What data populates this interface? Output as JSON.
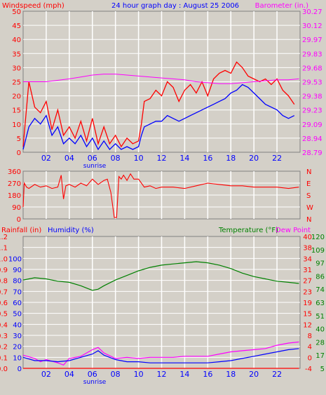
{
  "header": {
    "title": "24 hour graph day : August 25 2006",
    "left_label": "Windspeed (mph)",
    "right_label": "Barometer (in.)"
  },
  "colors": {
    "windspeed": "#ff0000",
    "gust": "#ff0000",
    "windavg": "#0000ff",
    "barometer": "#ff00ff",
    "direction": "#ff0000",
    "temperature": "#008000",
    "dewpoint": "#ff00ff",
    "humidity": "#0000ff",
    "rainfall": "#ff0000",
    "title": "#0000ff",
    "plot_bg": "#d4d0c8",
    "grid": "#ffffff"
  },
  "chart_data": [
    {
      "id": "wind-barometer",
      "type": "line",
      "x_ticks": [
        "02",
        "04",
        "06",
        "08",
        "10",
        "12",
        "14",
        "16",
        "18",
        "20",
        "22"
      ],
      "x_tick_hours": [
        2,
        4,
        6,
        8,
        10,
        12,
        14,
        16,
        18,
        20,
        22
      ],
      "sunrise_label": "sunrise",
      "sunrise_hour": 6.2,
      "xlim": [
        0,
        24
      ],
      "left_axis": {
        "ticks": [
          "0",
          "5",
          "10",
          "15",
          "20",
          "25",
          "30",
          "35",
          "40",
          "45",
          "50"
        ],
        "ylim": [
          0,
          50
        ]
      },
      "right_axis": {
        "ticks": [
          "28.79",
          "28.94",
          "29.09",
          "29.23",
          "29.38",
          "29.53",
          "29.68",
          "29.83",
          "29.97",
          "30.12",
          "30.27"
        ],
        "ylim": [
          28.79,
          30.27
        ]
      },
      "series": [
        {
          "key": "gust",
          "axis": "left",
          "x": [
            0,
            0.5,
            1,
            1.5,
            2,
            2.5,
            3,
            3.5,
            4,
            4.5,
            5,
            5.5,
            6,
            6.5,
            7,
            7.5,
            8,
            8.5,
            9,
            9.5,
            10,
            10.25,
            10.5,
            11,
            11.5,
            12,
            12.5,
            13,
            13.5,
            14,
            14.5,
            15,
            15.5,
            16,
            16.5,
            17,
            17.5,
            18,
            18.5,
            19,
            19.5,
            20,
            20.5,
            21,
            21.5,
            22,
            22.5,
            23,
            23.5
          ],
          "y": [
            2,
            25,
            16,
            14,
            18,
            8,
            15,
            6,
            9,
            5,
            11,
            4,
            12,
            3,
            9,
            3,
            6,
            2,
            5,
            3,
            4,
            10,
            18,
            19,
            22,
            20,
            25,
            23,
            18,
            22,
            24,
            21,
            25,
            20,
            26,
            28,
            29,
            28,
            32,
            30,
            27,
            26,
            25,
            26,
            24,
            26,
            22,
            20,
            17
          ]
        },
        {
          "key": "windavg",
          "axis": "left",
          "x": [
            0,
            0.5,
            1,
            1.5,
            2,
            2.5,
            3,
            3.5,
            4,
            4.5,
            5,
            5.5,
            6,
            6.5,
            7,
            7.5,
            8,
            8.5,
            9,
            9.5,
            10,
            10.25,
            10.5,
            11,
            11.5,
            12,
            12.5,
            13,
            13.5,
            14,
            14.5,
            15,
            15.5,
            16,
            16.5,
            17,
            17.5,
            18,
            18.5,
            19,
            19.5,
            20,
            20.5,
            21,
            21.5,
            22,
            22.5,
            23,
            23.5
          ],
          "y": [
            1,
            9,
            12,
            10,
            13,
            6,
            9,
            3,
            5,
            3,
            6,
            2,
            5,
            1,
            4,
            1,
            3,
            1,
            2,
            1,
            2,
            6,
            9,
            10,
            11,
            11,
            13,
            12,
            11,
            12,
            13,
            14,
            15,
            16,
            17,
            18,
            19,
            21,
            22,
            24,
            23,
            21,
            19,
            17,
            16,
            15,
            13,
            12,
            13
          ]
        },
        {
          "key": "barometer",
          "axis": "right",
          "x": [
            0,
            2,
            4,
            5,
            6,
            7,
            8,
            9,
            10,
            11,
            12,
            13,
            14,
            15,
            16,
            17,
            18,
            19,
            20,
            21,
            22,
            23,
            23.9
          ],
          "y": [
            29.53,
            29.53,
            29.56,
            29.58,
            29.6,
            29.61,
            29.61,
            29.6,
            29.59,
            29.58,
            29.57,
            29.56,
            29.55,
            29.53,
            29.52,
            29.51,
            29.51,
            29.52,
            29.53,
            29.54,
            29.55,
            29.55,
            29.56
          ]
        }
      ]
    },
    {
      "id": "wind-direction",
      "type": "line",
      "xlim": [
        0,
        24
      ],
      "left_axis": {
        "ticks": [
          "0",
          "90",
          "180",
          "270",
          "360"
        ],
        "ylim": [
          0,
          360
        ]
      },
      "right_axis": {
        "ticks": [
          "N",
          "W",
          "S",
          "E",
          "N"
        ]
      },
      "series": [
        {
          "key": "direction",
          "axis": "left",
          "x": [
            0,
            0.1,
            0.3,
            0.5,
            1,
            1.5,
            2,
            2.5,
            3,
            3.3,
            3.5,
            3.7,
            4,
            4.5,
            5,
            5.5,
            6,
            6.5,
            7,
            7.3,
            7.6,
            7.9,
            8.1,
            8.3,
            8.5,
            8.7,
            9,
            9.3,
            9.6,
            10,
            10.5,
            11,
            11.5,
            12,
            13,
            14,
            15,
            16,
            17,
            18,
            19,
            20,
            21,
            22,
            23,
            23.9
          ],
          "y": [
            90,
            270,
            240,
            230,
            260,
            240,
            250,
            230,
            240,
            330,
            150,
            250,
            260,
            240,
            270,
            250,
            300,
            260,
            290,
            300,
            200,
            10,
            10,
            320,
            300,
            330,
            290,
            340,
            300,
            300,
            240,
            250,
            230,
            240,
            240,
            230,
            250,
            270,
            260,
            250,
            250,
            240,
            240,
            240,
            230,
            240
          ]
        }
      ]
    },
    {
      "id": "temp-humidity",
      "type": "line",
      "xlim": [
        0,
        24
      ],
      "sunrise_label": "sunrise",
      "sunrise_hour": 6.2,
      "x_ticks": [
        "02",
        "04",
        "06",
        "08",
        "10",
        "12",
        "14",
        "16",
        "18",
        "20",
        "22"
      ],
      "x_tick_hours": [
        2,
        4,
        6,
        8,
        10,
        12,
        14,
        16,
        18,
        20,
        22
      ],
      "header": {
        "rainfall_label": "Rainfall (in)",
        "humidity_label": "Humidity (%)",
        "temperature_label": "Temperature (°F)",
        "dewpoint_label": "Dew Point"
      },
      "rain_axis": {
        "ticks": [
          "0.0",
          "0.1",
          "0.2",
          "0.3",
          "0.4",
          "0.5",
          "0.6",
          "0.7",
          "0.8",
          "0.9",
          "1.0",
          "1.1",
          "1.2"
        ]
      },
      "humidity_axis": {
        "ticks": [
          "0",
          "10",
          "20",
          "30",
          "40",
          "50",
          "60",
          "70",
          "80",
          "90",
          "100"
        ],
        "ylim": [
          0,
          120
        ]
      },
      "celsius_axis": {
        "ticks": [
          "-4",
          "0",
          "4",
          "8",
          "12",
          "15",
          "19",
          "23",
          "27",
          "31",
          "34",
          "38",
          "40"
        ]
      },
      "fahrenheit_axis": {
        "ticks": [
          "5",
          "17",
          "28",
          "40",
          "51",
          "63",
          "74",
          "86",
          "97",
          "109",
          "120"
        ],
        "ylim": [
          5,
          120
        ]
      },
      "series": [
        {
          "key": "temperature",
          "axis": "fahrenheit",
          "x": [
            0,
            1,
            2,
            3,
            4,
            5,
            5.5,
            6,
            6.5,
            7,
            8,
            9,
            10,
            11,
            12,
            13,
            14,
            15,
            16,
            17,
            18,
            19,
            20,
            21,
            22,
            23,
            23.9
          ],
          "y": [
            82,
            84,
            83,
            81,
            80,
            77,
            75,
            73,
            74,
            77,
            82,
            86,
            90,
            93,
            95,
            96,
            97,
            98,
            97,
            95,
            92,
            88,
            85,
            83,
            81,
            80,
            79
          ]
        },
        {
          "key": "dewpoint",
          "axis": "humidity",
          "x": [
            0,
            1,
            1.5,
            2,
            3,
            3.5,
            4,
            5,
            6,
            6.5,
            7,
            8,
            9,
            10,
            11,
            12,
            13,
            14,
            15,
            16,
            17,
            18,
            19,
            20,
            21,
            22,
            23,
            23.9
          ],
          "y": [
            12,
            9,
            6,
            8,
            5,
            3,
            9,
            11,
            17,
            19,
            14,
            9,
            10,
            9,
            10,
            10,
            10,
            11,
            11,
            11,
            13,
            15,
            16,
            17,
            18,
            21,
            23,
            24
          ]
        },
        {
          "key": "humidity",
          "axis": "humidity",
          "x": [
            0,
            1,
            2,
            3,
            4,
            5,
            6,
            6.5,
            7,
            8,
            9,
            10,
            11,
            12,
            13,
            14,
            15,
            16,
            17,
            18,
            19,
            20,
            21,
            22,
            23,
            23.9
          ],
          "y": [
            10,
            7,
            7,
            6,
            7,
            10,
            13,
            16,
            12,
            8,
            6,
            6,
            5,
            5,
            5,
            5,
            5,
            5,
            6,
            7,
            9,
            11,
            13,
            15,
            17,
            18
          ]
        },
        {
          "key": "rainfall",
          "axis": "humidity",
          "x": [
            0,
            23.9
          ],
          "y": [
            0,
            0
          ]
        }
      ]
    }
  ]
}
